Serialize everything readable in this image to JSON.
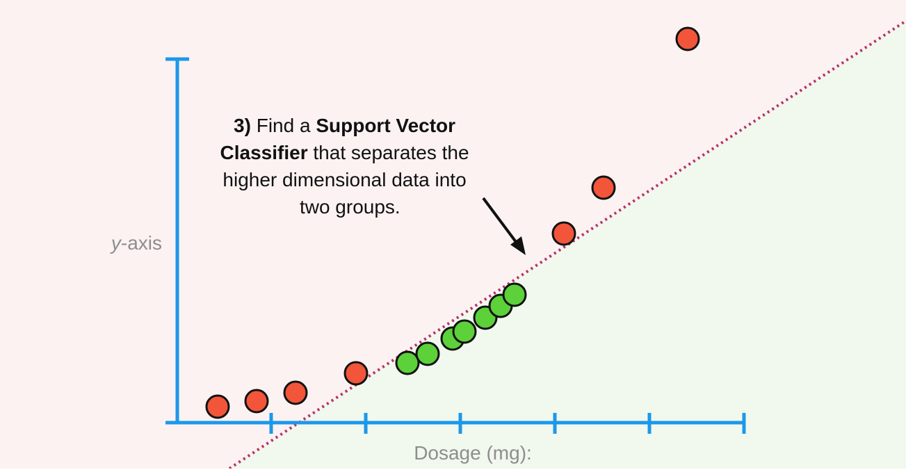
{
  "annotation": {
    "lines": [
      [
        "3)",
        " Find a ",
        "Support Vector"
      ],
      [
        "Classifier",
        " that separates the"
      ],
      [
        "higher dimensional data into"
      ],
      [
        "two groups."
      ]
    ]
  },
  "y_axis_label": [
    "y",
    "-axis"
  ],
  "x_axis_label": "Dosage (mg):"
}
